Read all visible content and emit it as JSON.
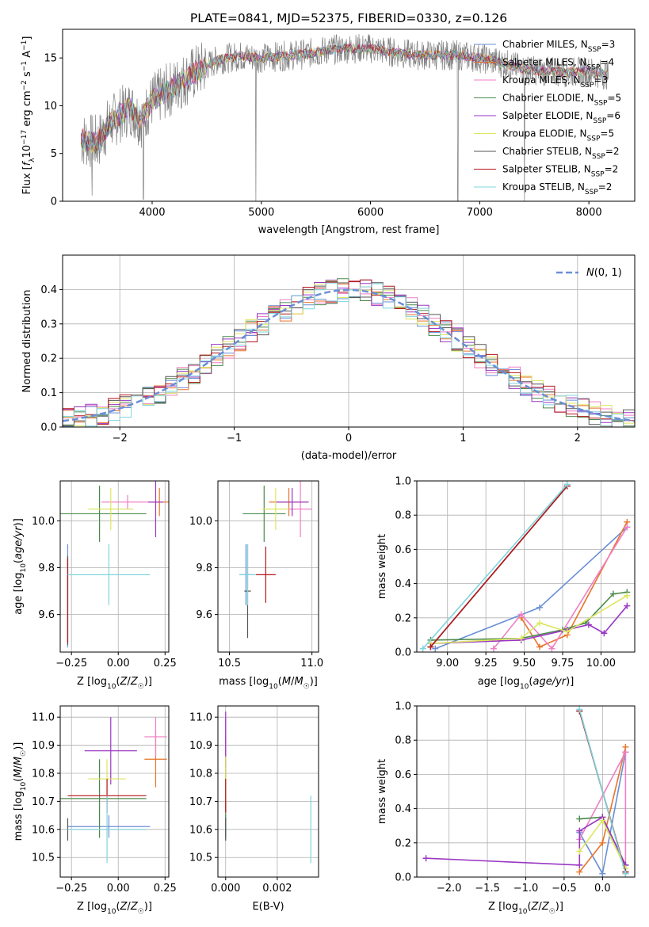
{
  "chart_data": [
    {
      "id": "spectrum",
      "type": "line",
      "title": "PLATE=0841, MJD=52375, FIBERID=0330, z=0.126",
      "xlabel": "wavelength [Angstrom, rest frame]",
      "ylabel_parts": [
        "Flux [",
        "f",
        "λ",
        "10",
        "−17",
        " erg cm",
        "−2",
        " s",
        "−1",
        " A",
        "−1",
        "]"
      ],
      "xlim": [
        3180,
        8420
      ],
      "ylim": [
        0,
        18
      ],
      "xticks": [
        4000,
        5000,
        6000,
        7000,
        8000
      ],
      "yticks": [
        0,
        5,
        10,
        15
      ],
      "grid": false,
      "legend": "top-right",
      "legend_entries": [
        {
          "label": "Chabrier MILES, N",
          "sub": "SSP",
          "suffix": "=3",
          "color": "#6a8fd6"
        },
        {
          "label": "Salpeter MILES, N",
          "sub": "SSP",
          "suffix": "=4",
          "color": "#e8742a"
        },
        {
          "label": "Kroupa MILES, N",
          "sub": "SSP",
          "suffix": "=3",
          "color": "#ef7fc4"
        },
        {
          "label": "Chabrier ELODIE, N",
          "sub": "SSP",
          "suffix": "=5",
          "color": "#4c8a4c"
        },
        {
          "label": "Salpeter ELODIE, N",
          "sub": "SSP",
          "suffix": "=6",
          "color": "#9a36c2"
        },
        {
          "label": "Kroupa ELODIE, N",
          "sub": "SSP",
          "suffix": "=5",
          "color": "#dde660"
        },
        {
          "label": "Chabrier STELIB, N",
          "sub": "SSP",
          "suffix": "=2",
          "color": "#555555"
        },
        {
          "label": "Salpeter STELIB, N",
          "sub": "SSP",
          "suffix": "=2",
          "color": "#b5161b"
        },
        {
          "label": "Kroupa STELIB, N",
          "sub": "SSP",
          "suffix": "=2",
          "color": "#7fd4de"
        }
      ],
      "data_color": "#808080",
      "continuum": [
        [
          3350,
          6.5
        ],
        [
          3500,
          6.1
        ],
        [
          3600,
          8.0
        ],
        [
          3700,
          9.0
        ],
        [
          3800,
          9.8
        ],
        [
          3900,
          8.5
        ],
        [
          4000,
          10.5
        ],
        [
          4200,
          12.0
        ],
        [
          4400,
          13.5
        ],
        [
          4600,
          14.8
        ],
        [
          4800,
          15.2
        ],
        [
          5000,
          15.0
        ],
        [
          5200,
          15.2
        ],
        [
          5400,
          15.4
        ],
        [
          5600,
          15.8
        ],
        [
          5800,
          16.0
        ],
        [
          6000,
          16.0
        ],
        [
          6200,
          15.6
        ],
        [
          6400,
          15.3
        ],
        [
          6600,
          15.3
        ],
        [
          6800,
          15.3
        ],
        [
          7000,
          15.0
        ],
        [
          7200,
          14.5
        ],
        [
          7400,
          13.8
        ],
        [
          7600,
          13.6
        ],
        [
          7800,
          13.5
        ],
        [
          8000,
          13.6
        ],
        [
          8180,
          13.2
        ]
      ],
      "dropouts": [
        [
          3450,
          0.6
        ],
        [
          3920,
          0.2
        ],
        [
          4950,
          0
        ],
        [
          6800,
          0
        ],
        [
          7410,
          0
        ]
      ]
    },
    {
      "id": "residuals",
      "type": "histogram",
      "xlabel": "(data-model)/error",
      "ylabel": "Normed distribution",
      "xlim": [
        -2.5,
        2.5
      ],
      "ylim": [
        0,
        0.5
      ],
      "xticks": [
        -2,
        -1,
        0,
        1,
        2
      ],
      "yticks": [
        0.0,
        0.1,
        0.2,
        0.3,
        0.4
      ],
      "grid": true,
      "legend": "top-right",
      "normal_label": "N(0,1)",
      "normal_color": "#6a8fd6",
      "bin_edges_start": -2.5,
      "bin_width": 0.1,
      "bins": 50
    },
    {
      "id": "age-vs-Z",
      "type": "errorbar",
      "xlabel": "Z [log10(Z/Z☉)]",
      "ylabel": "age [log10(age/yr)]",
      "xlim": [
        -0.31,
        0.27
      ],
      "ylim": [
        9.44,
        10.17
      ],
      "xticks": [
        -0.25,
        0.0,
        0.25
      ],
      "yticks": [
        9.6,
        9.8,
        10.0
      ],
      "grid": true,
      "points": [
        {
          "x": -0.27,
          "xerr": 0,
          "y": 9.68,
          "yerr": 0.22,
          "color": "#6a8fd6"
        },
        {
          "x": 0.22,
          "xerr": 0.06,
          "y": 10.08,
          "yerr": 0.06,
          "color": "#e8742a"
        },
        {
          "x": 0.05,
          "xerr": 0.14,
          "y": 10.08,
          "yerr": 0.03,
          "color": "#ef7fc4"
        },
        {
          "x": -0.1,
          "xerr": 0.25,
          "y": 10.03,
          "yerr": 0.12,
          "color": "#4c8a4c"
        },
        {
          "x": 0.2,
          "xerr": 0.04,
          "y": 10.08,
          "yerr": 0.15,
          "color": "#9a36c2"
        },
        {
          "x": -0.04,
          "xerr": 0.12,
          "y": 10.05,
          "yerr": 0.09,
          "color": "#dde660"
        },
        {
          "x": -0.27,
          "xerr": 0,
          "y": 9.66,
          "yerr": 0.19,
          "color": "#555555"
        },
        {
          "x": -0.27,
          "xerr": 0,
          "y": 9.66,
          "yerr": 0.18,
          "color": "#b5161b"
        },
        {
          "x": -0.05,
          "xerr": 0.22,
          "y": 9.77,
          "yerr": 0.13,
          "color": "#7fd4de"
        }
      ]
    },
    {
      "id": "age-vs-mass",
      "type": "errorbar",
      "xlabel": "mass [log10(M/M☉)]",
      "ylabel": "",
      "xlim": [
        10.43,
        11.04
      ],
      "ylim": [
        9.44,
        10.17
      ],
      "xticks": [
        10.5,
        11.0
      ],
      "yticks": [
        9.6,
        9.8,
        10.0
      ],
      "grid": true,
      "points": [
        {
          "x": 10.6,
          "xerr": 0.04,
          "y": 9.77,
          "yerr": 0.13,
          "color": "#6a8fd6"
        },
        {
          "x": 10.86,
          "xerr": 0.12,
          "y": 10.08,
          "yerr": 0.06,
          "color": "#e8742a"
        },
        {
          "x": 10.93,
          "xerr": 0.07,
          "y": 10.05,
          "yerr": 0.12,
          "color": "#ef7fc4"
        },
        {
          "x": 10.71,
          "xerr": 0.13,
          "y": 10.03,
          "yerr": 0.12,
          "color": "#4c8a4c"
        },
        {
          "x": 10.88,
          "xerr": 0.1,
          "y": 10.08,
          "yerr": 0.06,
          "color": "#9a36c2"
        },
        {
          "x": 10.78,
          "xerr": 0.08,
          "y": 10.05,
          "yerr": 0.09,
          "color": "#dde660"
        },
        {
          "x": 10.61,
          "xerr": 0.02,
          "y": 9.7,
          "yerr": 0.2,
          "color": "#555555"
        },
        {
          "x": 10.72,
          "xerr": 0.06,
          "y": 9.77,
          "yerr": 0.12,
          "color": "#b5161b"
        },
        {
          "x": 10.61,
          "xerr": 0.05,
          "y": 9.77,
          "yerr": 0.13,
          "color": "#7fd4de"
        }
      ]
    },
    {
      "id": "massweight-vs-age",
      "type": "line",
      "xlabel": "age [log10(age/yr)]",
      "ylabel": "mass weight",
      "xlim": [
        8.8,
        10.22
      ],
      "ylim": [
        0,
        1
      ],
      "xticks": [
        9.0,
        9.25,
        9.5,
        9.75,
        10.0
      ],
      "yticks": [
        0.0,
        0.2,
        0.4,
        0.6,
        0.8,
        1.0
      ],
      "grid": true,
      "series": [
        {
          "color": "#6a8fd6",
          "points": [
            [
              8.92,
              0.02
            ],
            [
              9.6,
              0.26
            ],
            [
              10.17,
              0.73
            ]
          ]
        },
        {
          "color": "#e8742a",
          "points": [
            [
              9.48,
              0.2
            ],
            [
              9.6,
              0.03
            ],
            [
              9.78,
              0.1
            ],
            [
              10.17,
              0.76
            ]
          ]
        },
        {
          "color": "#ef7fc4",
          "points": [
            [
              9.3,
              0.02
            ],
            [
              9.48,
              0.22
            ],
            [
              9.68,
              0.02
            ],
            [
              10.17,
              0.73
            ]
          ]
        },
        {
          "color": "#4c8a4c",
          "points": [
            [
              8.89,
              0.07
            ],
            [
              9.48,
              0.08
            ],
            [
              9.75,
              0.13
            ],
            [
              9.9,
              0.17
            ],
            [
              10.08,
              0.34
            ],
            [
              10.17,
              0.35
            ]
          ]
        },
        {
          "color": "#9a36c2",
          "points": [
            [
              8.89,
              0.05
            ],
            [
              9.48,
              0.07
            ],
            [
              9.78,
              0.13
            ],
            [
              9.92,
              0.16
            ],
            [
              10.02,
              0.11
            ],
            [
              10.17,
              0.27
            ]
          ]
        },
        {
          "color": "#dde660",
          "points": [
            [
              8.89,
              0.05
            ],
            [
              9.48,
              0.08
            ],
            [
              9.6,
              0.17
            ],
            [
              9.78,
              0.12
            ],
            [
              10.17,
              0.33
            ]
          ]
        },
        {
          "color": "#555555",
          "points": [
            [
              8.89,
              0.03
            ],
            [
              9.78,
              0.97
            ]
          ]
        },
        {
          "color": "#b5161b",
          "points": [
            [
              8.89,
              0.03
            ],
            [
              9.78,
              0.97
            ]
          ]
        },
        {
          "color": "#7fd4de",
          "points": [
            [
              8.84,
              0.02
            ],
            [
              9.78,
              0.98
            ]
          ]
        }
      ]
    },
    {
      "id": "mass-vs-Z",
      "type": "errorbar",
      "xlabel": "Z [log10(Z/Z☉)]",
      "ylabel": "mass [log10(M/M☉)]",
      "xlim": [
        -0.31,
        0.27
      ],
      "ylim": [
        10.43,
        11.04
      ],
      "xticks": [
        -0.25,
        0.0,
        0.25
      ],
      "yticks": [
        10.5,
        10.6,
        10.7,
        10.8,
        10.9,
        11.0
      ],
      "grid": true,
      "points": [
        {
          "x": -0.05,
          "xerr": 0.22,
          "y": 10.61,
          "yerr": 0.04,
          "color": "#6a8fd6"
        },
        {
          "x": 0.2,
          "xerr": 0.06,
          "y": 10.85,
          "yerr": 0.1,
          "color": "#e8742a"
        },
        {
          "x": 0.2,
          "xerr": 0.06,
          "y": 10.93,
          "yerr": 0.07,
          "color": "#ef7fc4"
        },
        {
          "x": -0.1,
          "xerr": 0.25,
          "y": 10.71,
          "yerr": 0.14,
          "color": "#4c8a4c"
        },
        {
          "x": -0.04,
          "xerr": 0.14,
          "y": 10.88,
          "yerr": 0.12,
          "color": "#9a36c2"
        },
        {
          "x": -0.06,
          "xerr": 0.1,
          "y": 10.78,
          "yerr": 0.07,
          "color": "#dde660"
        },
        {
          "x": -0.27,
          "xerr": 0,
          "y": 10.6,
          "yerr": 0.04,
          "color": "#555555"
        },
        {
          "x": -0.06,
          "xerr": 0.21,
          "y": 10.72,
          "yerr": 0.06,
          "color": "#b5161b"
        },
        {
          "x": -0.06,
          "xerr": 0.21,
          "y": 10.6,
          "yerr": 0.12,
          "color": "#7fd4de"
        }
      ]
    },
    {
      "id": "mass-vs-ebv",
      "type": "errorbar",
      "xlabel": "E(B-V)",
      "ylabel": "",
      "xlim": [
        -0.0003,
        0.0036
      ],
      "ylim": [
        10.43,
        11.04
      ],
      "xticks": [
        0.0,
        0.002
      ],
      "xtick_labels": [
        "0.000",
        "0.002"
      ],
      "yticks": [
        10.5,
        10.6,
        10.7,
        10.8,
        10.9,
        11.0
      ],
      "grid": true,
      "points": [
        {
          "x": 0,
          "xerr": 0,
          "y": 10.61,
          "yerr": 0.04,
          "color": "#6a8fd6"
        },
        {
          "x": 0,
          "xerr": 0,
          "y": 10.85,
          "yerr": 0.1,
          "color": "#e8742a"
        },
        {
          "x": 0,
          "xerr": 0,
          "y": 10.93,
          "yerr": 0.07,
          "color": "#ef7fc4"
        },
        {
          "x": 0,
          "xerr": 0,
          "y": 10.71,
          "yerr": 0.14,
          "color": "#4c8a4c"
        },
        {
          "x": 0,
          "xerr": 0,
          "y": 10.92,
          "yerr": 0.1,
          "color": "#9a36c2"
        },
        {
          "x": 0,
          "xerr": 0,
          "y": 10.78,
          "yerr": 0.08,
          "color": "#dde660"
        },
        {
          "x": 0,
          "xerr": 0,
          "y": 10.6,
          "yerr": 0.04,
          "color": "#555555"
        },
        {
          "x": 0,
          "xerr": 0,
          "y": 10.72,
          "yerr": 0.06,
          "color": "#b5161b"
        },
        {
          "x": 0.0033,
          "xerr": 0,
          "y": 10.6,
          "yerr": 0.12,
          "color": "#7fd4de"
        }
      ]
    },
    {
      "id": "massweight-vs-Z",
      "type": "line",
      "xlabel": "Z [log10(Z/Z☉)]",
      "ylabel": "mass weight",
      "xlim": [
        -2.42,
        0.42
      ],
      "ylim": [
        0,
        1
      ],
      "xticks": [
        -2.0,
        -1.5,
        -1.0,
        -0.5,
        0.0
      ],
      "yticks": [
        0.0,
        0.2,
        0.4,
        0.6,
        0.8,
        1.0
      ],
      "grid": true,
      "series": [
        {
          "color": "#6a8fd6",
          "points": [
            [
              -0.3,
              0.26
            ],
            [
              0.0,
              0.02
            ],
            [
              0.3,
              0.73
            ]
          ]
        },
        {
          "color": "#e8742a",
          "points": [
            [
              -0.3,
              0.03
            ],
            [
              0.0,
              0.2
            ],
            [
              0.3,
              0.76
            ]
          ]
        },
        {
          "color": "#ef7fc4",
          "points": [
            [
              -0.3,
              0.22
            ],
            [
              0.3,
              0.73
            ],
            [
              0.3,
              0.02
            ]
          ]
        },
        {
          "color": "#4c8a4c",
          "points": [
            [
              -0.3,
              0.34
            ],
            [
              0.0,
              0.35
            ],
            [
              0.3,
              0.07
            ]
          ]
        },
        {
          "color": "#9a36c2",
          "points": [
            [
              -2.3,
              0.11
            ],
            [
              -0.3,
              0.07
            ],
            [
              -0.3,
              0.27
            ],
            [
              0.0,
              0.35
            ],
            [
              0.3,
              0.07
            ]
          ]
        },
        {
          "color": "#dde660",
          "points": [
            [
              -0.3,
              0.15
            ],
            [
              0.0,
              0.33
            ],
            [
              0.3,
              0.05
            ]
          ]
        },
        {
          "color": "#555555",
          "points": [
            [
              -0.3,
              0.97
            ],
            [
              0.3,
              0.03
            ]
          ]
        },
        {
          "color": "#b5161b",
          "points": [
            [
              -0.3,
              0.97
            ],
            [
              0.3,
              0.03
            ]
          ]
        },
        {
          "color": "#7fd4de",
          "points": [
            [
              -0.3,
              0.98
            ],
            [
              0.3,
              0.02
            ]
          ]
        }
      ]
    }
  ]
}
